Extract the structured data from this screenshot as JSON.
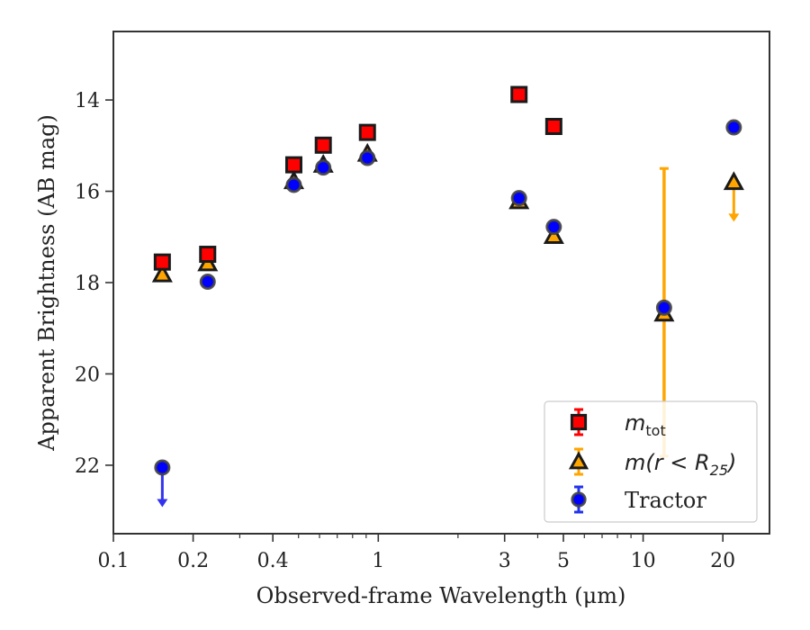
{
  "chart_data": {
    "type": "scatter",
    "xscale": "log",
    "yaxis_inverted": true,
    "xlabel": "Observed-frame Wavelength (μm)",
    "ylabel": "Apparent Brightness (AB mag)",
    "xlim": [
      0.1,
      30
    ],
    "ylim": [
      23.5,
      12.5
    ],
    "x_ticks": [
      {
        "value": 0.1,
        "label": "0.1"
      },
      {
        "value": 0.2,
        "label": "0.2"
      },
      {
        "value": 0.4,
        "label": "0.4"
      },
      {
        "value": 1,
        "label": "1"
      },
      {
        "value": 3,
        "label": "3"
      },
      {
        "value": 5,
        "label": "5"
      },
      {
        "value": 10,
        "label": "10"
      },
      {
        "value": 20,
        "label": "20"
      }
    ],
    "y_ticks": [
      {
        "value": 14,
        "label": "14"
      },
      {
        "value": 16,
        "label": "16"
      },
      {
        "value": 18,
        "label": "18"
      },
      {
        "value": 20,
        "label": "20"
      },
      {
        "value": 22,
        "label": "22"
      }
    ],
    "grid": false,
    "legend_position": "bottom-right",
    "series": [
      {
        "name": "m_tot",
        "legend_main": "m",
        "legend_sub": "tot",
        "marker": "square",
        "color": "#ff0000",
        "edge_color": "#1a1a1a",
        "points": [
          {
            "x": 0.153,
            "y": 17.55
          },
          {
            "x": 0.227,
            "y": 17.38
          },
          {
            "x": 0.48,
            "y": 15.42
          },
          {
            "x": 0.62,
            "y": 14.99
          },
          {
            "x": 0.91,
            "y": 14.71
          },
          {
            "x": 3.4,
            "y": 13.88
          },
          {
            "x": 4.6,
            "y": 14.58
          }
        ]
      },
      {
        "name": "m(r < R25)",
        "legend_main": "m(r < R",
        "legend_sub": "25",
        "legend_end": ")",
        "marker": "triangle",
        "color": "#ffa500",
        "edge_color": "#1a1a1a",
        "points": [
          {
            "x": 0.153,
            "y": 17.82
          },
          {
            "x": 0.227,
            "y": 17.58
          },
          {
            "x": 0.48,
            "y": 15.78
          },
          {
            "x": 0.62,
            "y": 15.42
          },
          {
            "x": 0.91,
            "y": 15.18
          },
          {
            "x": 3.4,
            "y": 16.22
          },
          {
            "x": 4.6,
            "y": 16.98
          },
          {
            "x": 12,
            "y": 18.68,
            "err_low": 15.5,
            "err_high": 21.8
          },
          {
            "x": 22,
            "y": 15.8,
            "upper_limit": true
          }
        ]
      },
      {
        "name": "Tractor",
        "legend_main": "Tractor",
        "marker": "circle",
        "color": "#0000ff",
        "edge_color": "#444444",
        "points": [
          {
            "x": 0.153,
            "y": 22.05,
            "upper_limit": true
          },
          {
            "x": 0.227,
            "y": 17.98
          },
          {
            "x": 0.48,
            "y": 15.86
          },
          {
            "x": 0.62,
            "y": 15.48
          },
          {
            "x": 0.91,
            "y": 15.27
          },
          {
            "x": 3.4,
            "y": 16.15
          },
          {
            "x": 4.6,
            "y": 16.78
          },
          {
            "x": 12,
            "y": 18.55
          },
          {
            "x": 22,
            "y": 14.6
          }
        ]
      }
    ]
  }
}
